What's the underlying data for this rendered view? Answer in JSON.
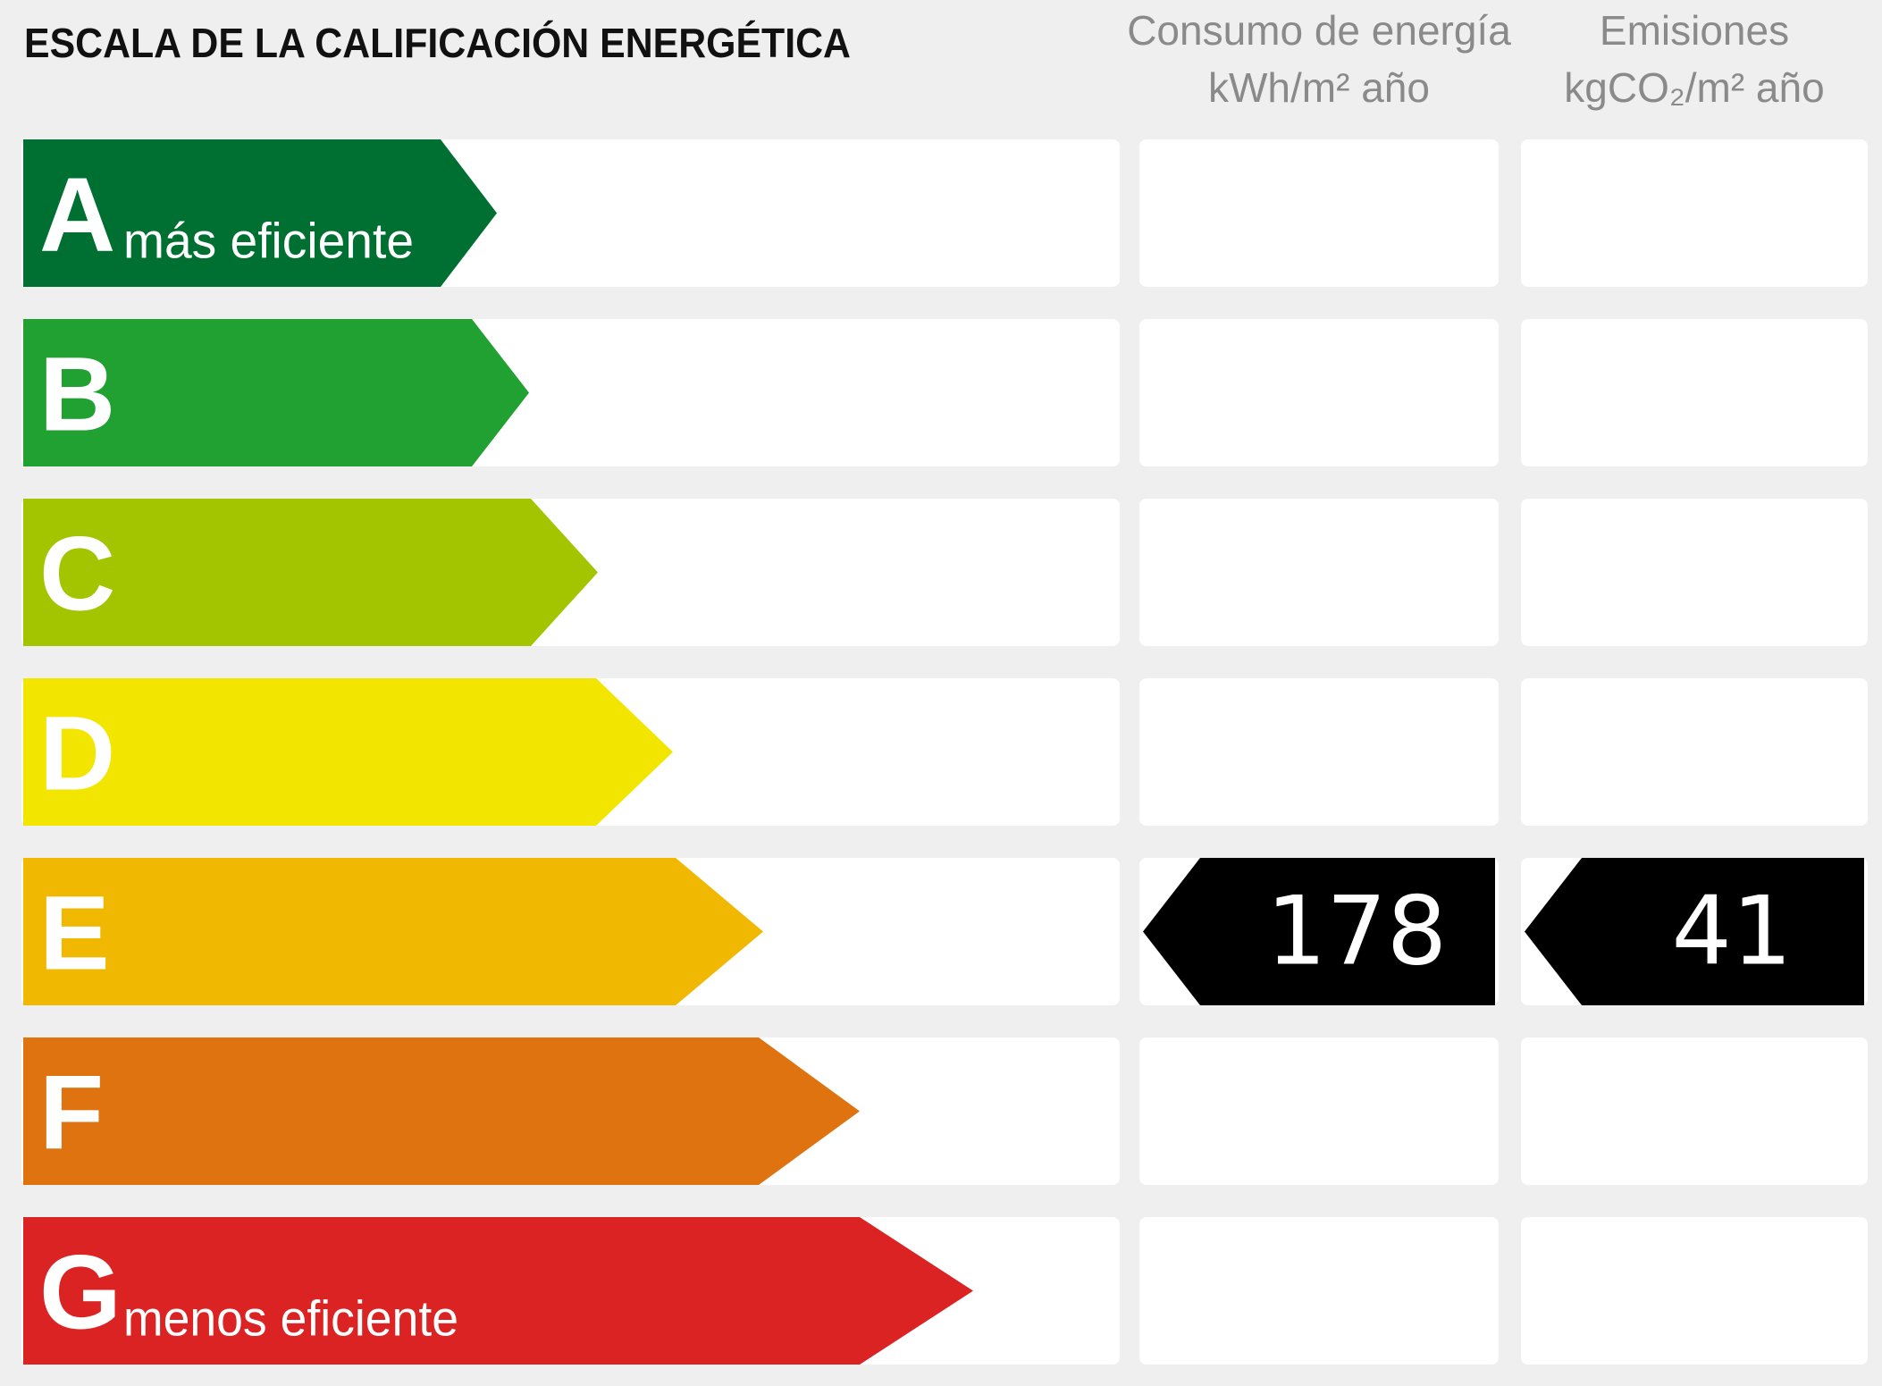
{
  "title": "ESCALA DE LA CALIFICACIÓN ENERGÉTICA",
  "columns": [
    {
      "line1": "Consumo de energía",
      "line2": "kWh/m² año"
    },
    {
      "line1": "Emisiones",
      "line2": "kgCO₂/m² año"
    }
  ],
  "rows": [
    {
      "letter": "A",
      "note": "más eficiente",
      "color": "#006f32"
    },
    {
      "letter": "B",
      "color": "#21a132"
    },
    {
      "letter": "C",
      "color": "#a3c500"
    },
    {
      "letter": "D",
      "color": "#f2e600"
    },
    {
      "letter": "E",
      "color": "#f0b800",
      "consumption": 178,
      "emissions": 41
    },
    {
      "letter": "F",
      "color": "#de7310"
    },
    {
      "letter": "G",
      "note": "menos eficiente",
      "color": "#dc2323"
    }
  ]
}
